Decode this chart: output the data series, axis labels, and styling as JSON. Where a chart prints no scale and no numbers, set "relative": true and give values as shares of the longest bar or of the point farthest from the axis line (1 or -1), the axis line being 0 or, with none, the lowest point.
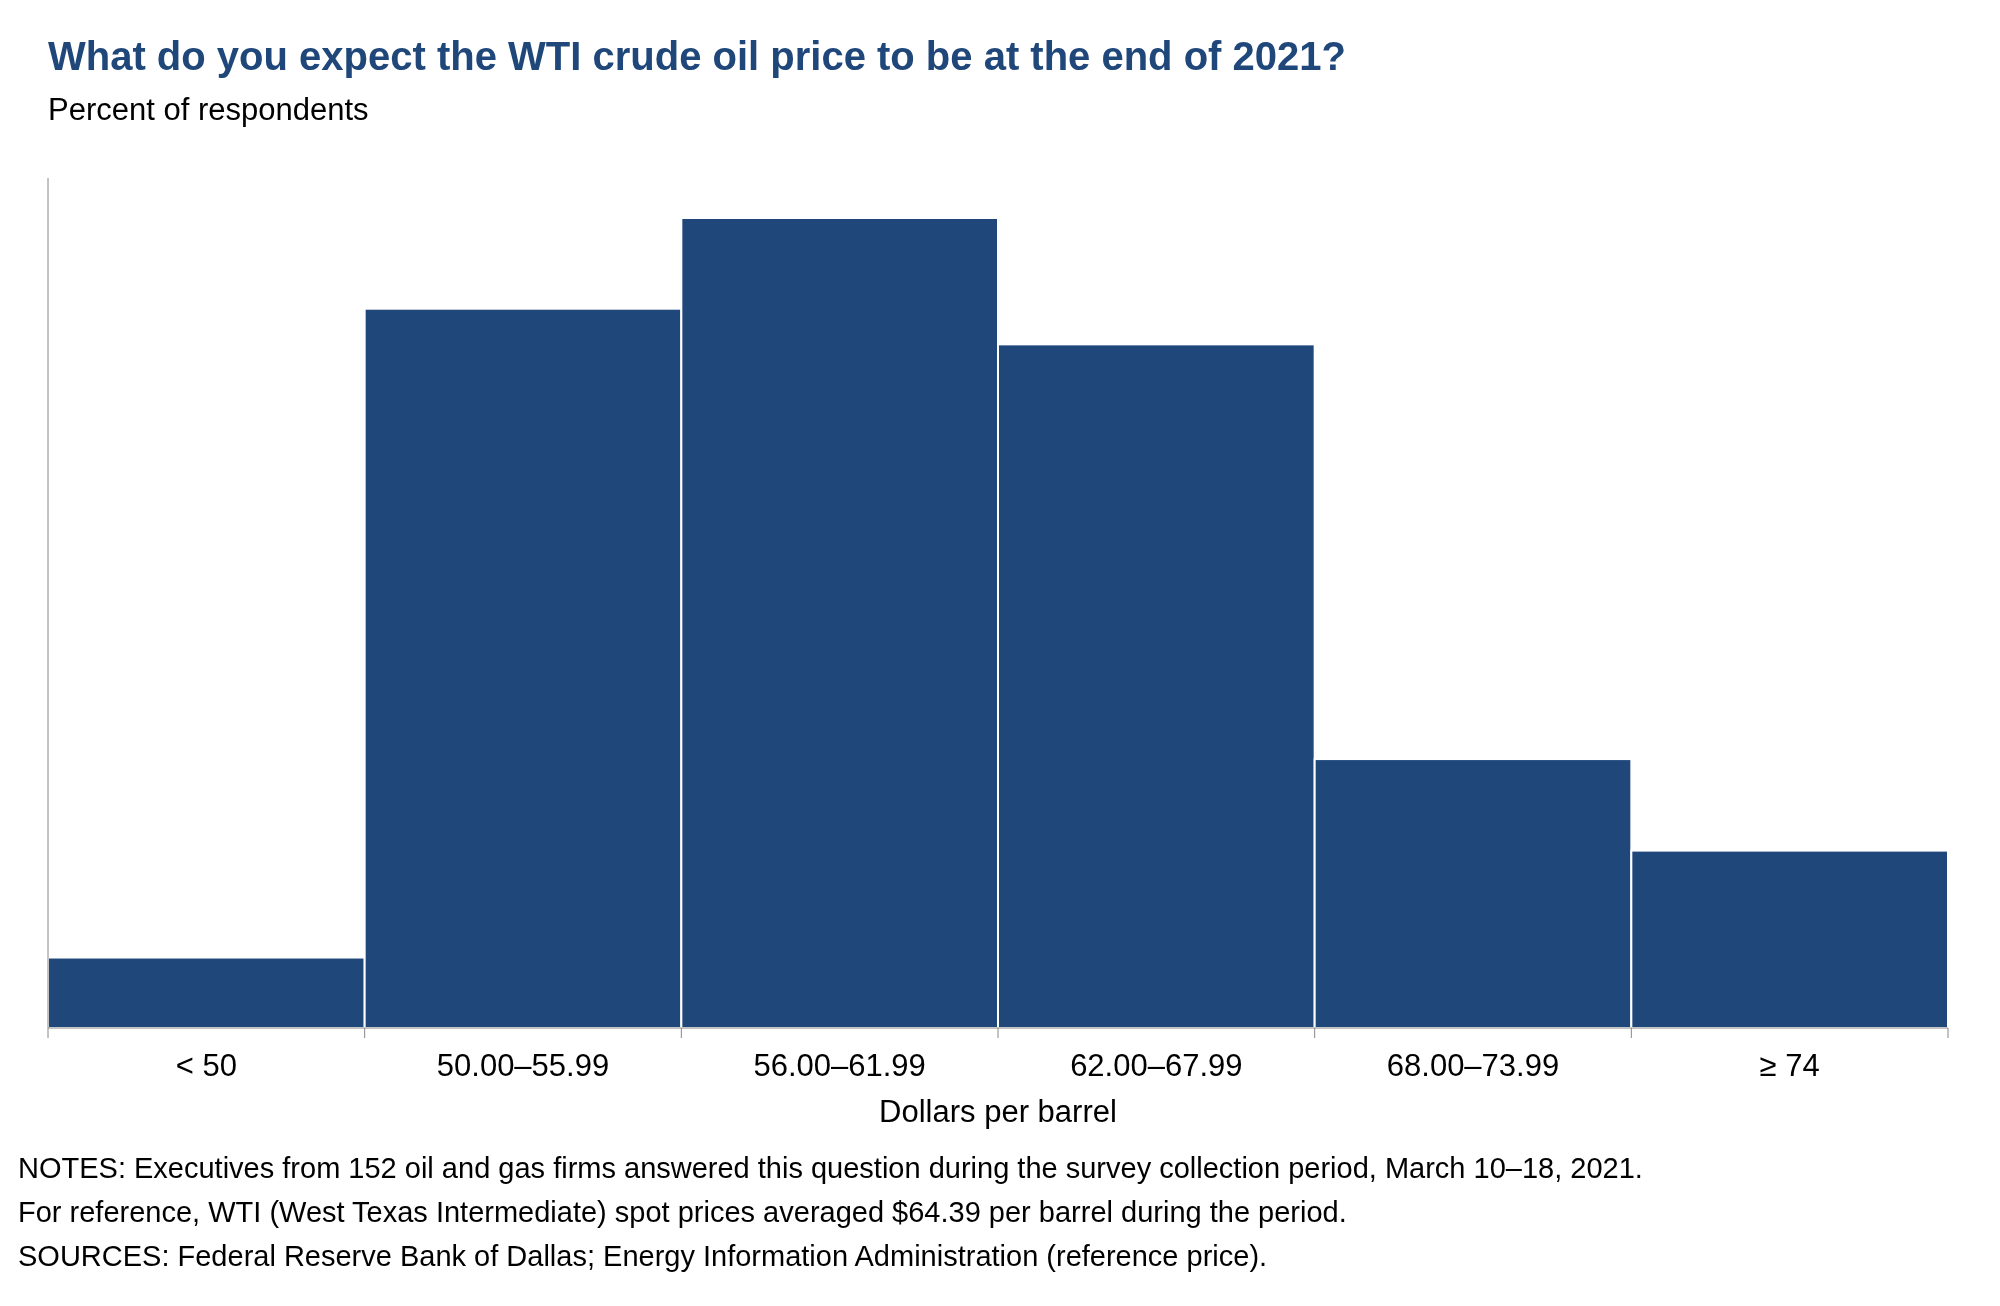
{
  "chart_data": {
    "type": "bar",
    "title": "What do you expect the WTI crude oil price to be at the end of 2021?",
    "subtitle": "Percent of respondents",
    "xlabel": "Dollars per barrel",
    "categories": [
      "< 50",
      "50.00–55.99",
      "56.00–61.99",
      "62.00–67.99",
      "68.00–73.99",
      "≥ 74"
    ],
    "values": [
      0.087,
      0.888,
      1,
      0.844,
      0.332,
      0.219
    ],
    "color": "#1f477a",
    "relative": true,
    "annotations": [
      "NOTES: Executives from 152 oil and gas firms answered this question during the survey collection period, March 10–18, 2021.",
      "For reference, WTI (West Texas Intermediate) spot prices averaged $64.39 per barrel during the period.",
      "SOURCES: Federal Reserve Bank of Dallas; Energy Information Administration (reference price)."
    ]
  }
}
